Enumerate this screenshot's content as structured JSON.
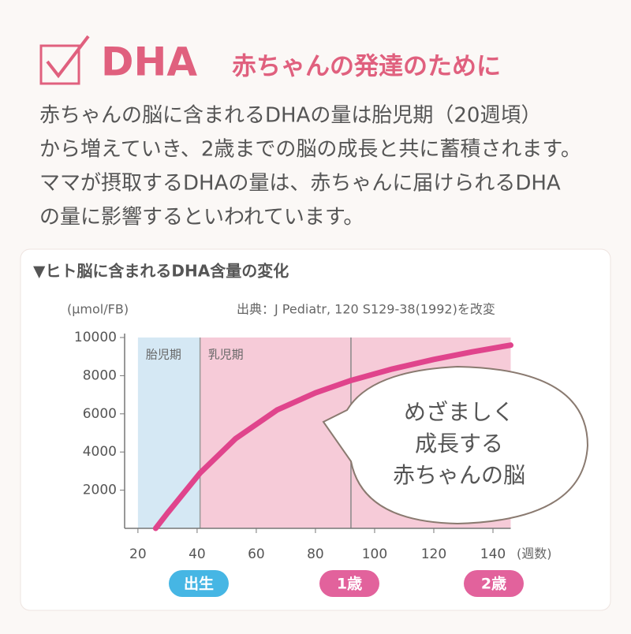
{
  "header": {
    "title": "DHA",
    "subtitle": "赤ちゃんの発達のために"
  },
  "paragraph": [
    "赤ちゃんの脳に含まれるDHAの量は胎児期（20週頃）",
    "から増えていき、2歳までの脳の成長と共に蓄積されます。",
    "ママが摂取するDHAの量は、赤ちゃんに届けられるDHA",
    "の量に影響するといわれています。"
  ],
  "chart_data": {
    "type": "line",
    "title": "▼ヒト脳に含まれるDHA含量の変化",
    "ylabel": "(μmol/FB)",
    "source": "出典：J Pediatr, 120 S129-38(1992)を改変",
    "xlabel": "(週数)",
    "x": [
      26,
      30,
      41,
      53,
      67,
      80,
      92,
      106,
      120,
      133,
      146
    ],
    "series": [
      {
        "name": "DHA含量",
        "color": "#e0448c",
        "values": [
          0,
          800,
          2900,
          4700,
          6200,
          7100,
          7750,
          8350,
          8850,
          9250,
          9600
        ]
      }
    ],
    "xlim": [
      15.5,
      146
    ],
    "xticks": [
      20,
      40,
      60,
      80,
      100,
      120,
      140
    ],
    "ylim": [
      0,
      10000
    ],
    "yticks": [
      2000,
      4000,
      6000,
      8000,
      10000
    ],
    "regions": [
      {
        "label": "胎児期",
        "start": 20,
        "end": 41,
        "color": "#d5e8f4"
      },
      {
        "label": "乳児期",
        "start": 41,
        "end": 146,
        "color": "#f6cbd8"
      }
    ],
    "vlines": [
      92
    ],
    "callout": [
      "めざましく",
      "成長する",
      "赤ちゃんの脳"
    ],
    "badges": [
      {
        "label": "出生",
        "color": "#46b6e4"
      },
      {
        "label": "1歳",
        "color": "#e2629c"
      },
      {
        "label": "2歳",
        "color": "#e2629c"
      }
    ]
  }
}
